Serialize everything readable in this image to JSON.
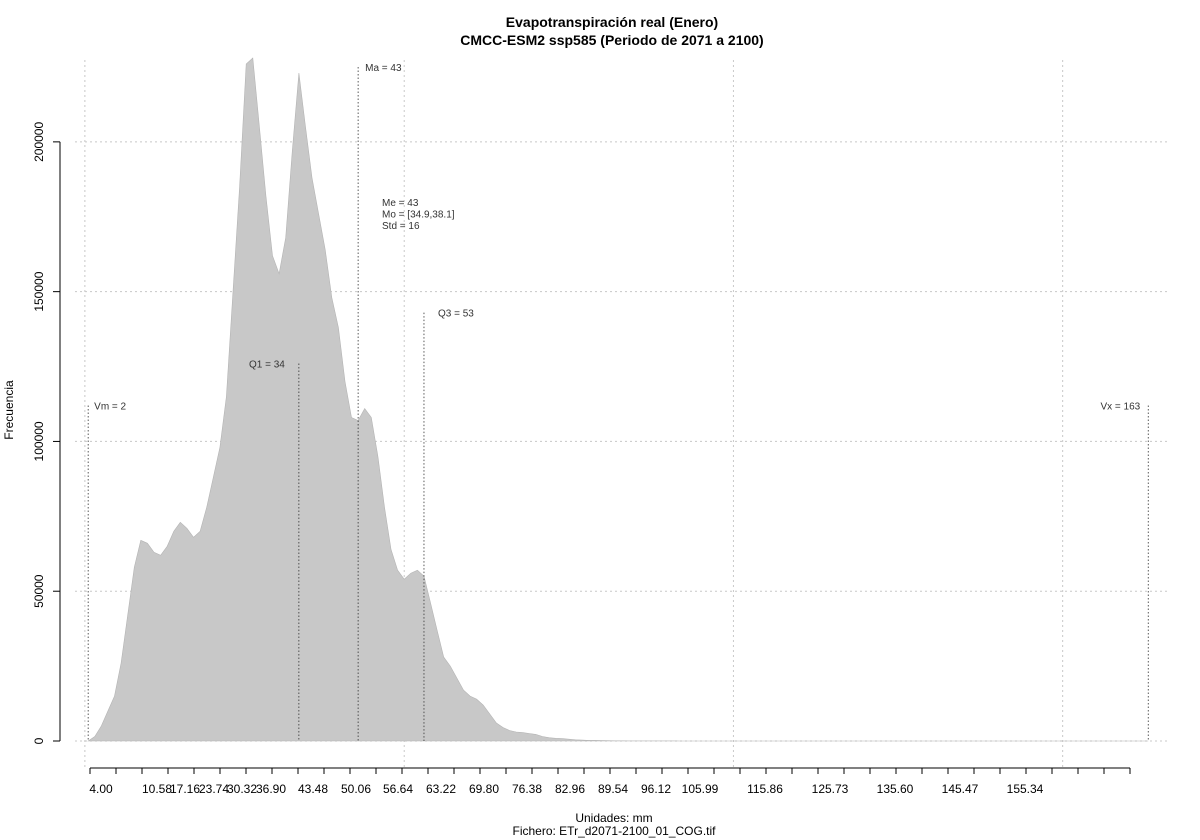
{
  "chart_data": {
    "type": "area",
    "title": "Evapotranspiración real (Enero)",
    "subtitle": "CMCC-ESM2 ssp585 (Periodo de 2071 a 2100)",
    "xlabel": "Unidades: mm",
    "caption": "Fichero: ETr_d2071-2100_01_COG.tif",
    "ylabel": "Frecuencia",
    "xlim": [
      0,
      166
    ],
    "ylim": [
      0,
      230000
    ],
    "grid": true,
    "fill_color": "#c8c8c8",
    "x_tick_labels": [
      "4.00",
      "10.58",
      "17.16",
      "23.74",
      "30.32",
      "36.90",
      "43.48",
      "50.06",
      "56.64",
      "63.22",
      "69.80",
      "76.38",
      "82.96",
      "89.54",
      "96.12",
      "105.99",
      "115.86",
      "125.73",
      "135.60",
      "145.47",
      "155.34"
    ],
    "y_tick_labels": [
      "0",
      "50000",
      "100000",
      "150000",
      "200000"
    ],
    "y_ticks": [
      0,
      50000,
      100000,
      150000,
      200000
    ],
    "x_gridlines": [
      1.5,
      50.0,
      100.0,
      150.0
    ],
    "x": [
      2,
      3,
      4,
      5,
      6,
      7,
      8,
      9,
      10,
      11,
      12,
      13,
      14,
      15,
      16,
      17,
      18,
      19,
      20,
      21,
      22,
      23,
      24,
      25,
      26,
      27,
      28,
      29,
      30,
      31,
      32,
      33,
      34,
      35,
      36,
      37,
      38,
      39,
      40,
      41,
      42,
      43,
      44,
      45,
      46,
      47,
      48,
      49,
      50,
      51,
      52,
      53,
      54,
      55,
      56,
      57,
      58,
      59,
      60,
      61,
      62,
      63,
      64,
      65,
      66,
      67,
      68,
      69,
      70,
      71,
      72,
      73,
      74,
      75,
      76,
      77,
      78,
      79,
      80,
      81,
      82,
      83,
      84,
      85,
      86,
      87,
      88,
      89,
      90,
      91,
      92,
      93,
      94,
      95,
      96,
      97,
      98,
      99,
      100,
      102,
      105,
      110,
      115,
      120,
      130,
      140,
      150,
      163
    ],
    "values": [
      0,
      1500,
      5000,
      10000,
      15000,
      26000,
      42000,
      58000,
      67000,
      66000,
      63000,
      62000,
      65000,
      70000,
      73000,
      71000,
      68000,
      70000,
      78000,
      88000,
      98000,
      115000,
      150000,
      185000,
      226000,
      228000,
      205000,
      182000,
      162000,
      156000,
      168000,
      197000,
      223000,
      205000,
      188000,
      176000,
      164000,
      148000,
      138000,
      120000,
      108000,
      107000,
      111000,
      108000,
      95000,
      78000,
      64000,
      57000,
      54000,
      56000,
      57000,
      55000,
      46000,
      37000,
      28000,
      25000,
      21000,
      17000,
      15000,
      14000,
      12000,
      9000,
      6000,
      4500,
      3500,
      3000,
      2800,
      2500,
      2200,
      1500,
      1100,
      900,
      800,
      600,
      400,
      300,
      200,
      200,
      150,
      100,
      80,
      60,
      50,
      40,
      30,
      30,
      20,
      20,
      20,
      20,
      15,
      12,
      10,
      8,
      5,
      5,
      3,
      3,
      2,
      2,
      1,
      1,
      1,
      1,
      0,
      0,
      0,
      0
    ],
    "markers": [
      {
        "label": "Vm = 2",
        "x": 2,
        "y": 112000
      },
      {
        "label": "Q1 = 34",
        "x": 34,
        "y": 126000
      },
      {
        "label": "Ma = 43",
        "x": 43,
        "y": 225000
      },
      {
        "label": "Q3 = 53",
        "x": 53,
        "y": 143000
      },
      {
        "label": "Vx = 163",
        "x": 163,
        "y": 112000
      }
    ],
    "stats": [
      "Me = 43",
      "Mo = [34.9,38.1]",
      "Std = 16"
    ]
  }
}
